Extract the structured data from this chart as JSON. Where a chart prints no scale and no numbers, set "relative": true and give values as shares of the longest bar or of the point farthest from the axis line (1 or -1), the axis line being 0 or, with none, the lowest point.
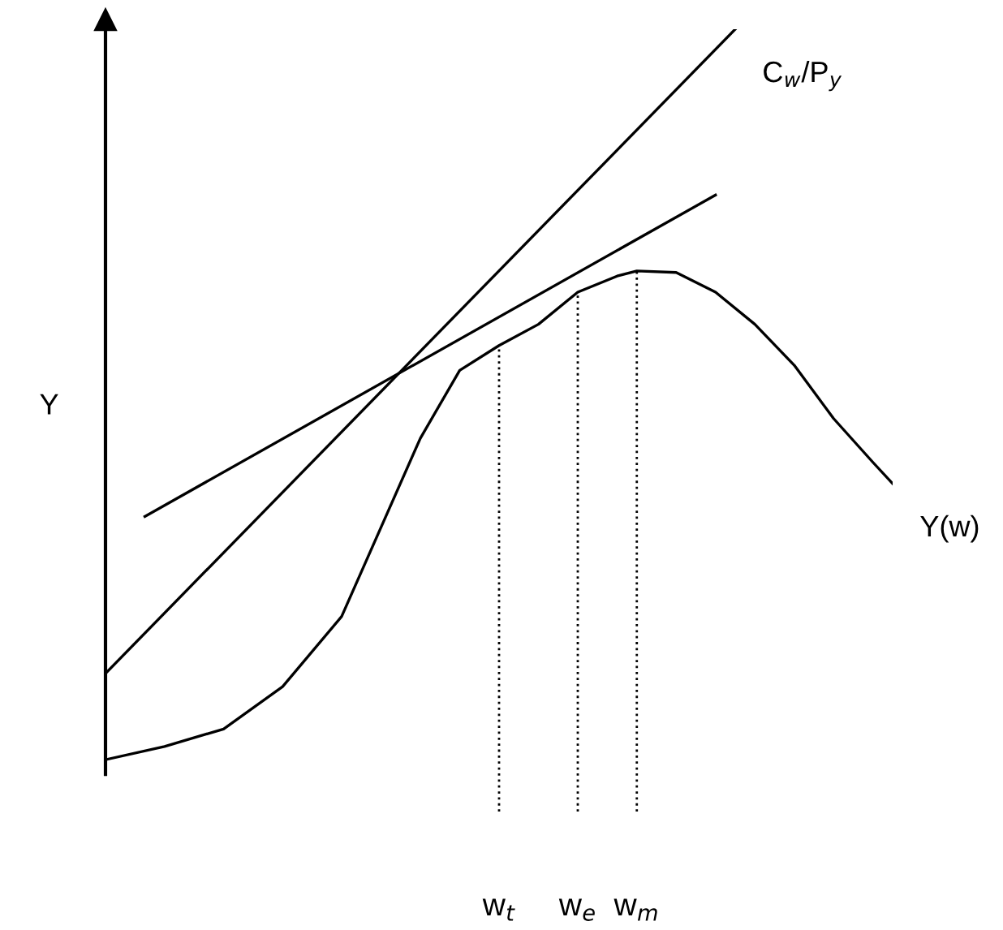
{
  "chart_data": {
    "type": "line",
    "relative": true,
    "ylabel": "Y",
    "tick_labels": "x",
    "marker": "none",
    "categories": [
      null,
      null,
      null,
      null,
      null,
      null,
      null,
      null,
      null,
      null,
      null,
      null,
      null,
      null,
      null,
      null,
      null,
      null,
      null,
      null,
      "w$_{t}$",
      null,
      null,
      null,
      "w$_{e}$",
      null,
      null,
      "w$_{m}$",
      null,
      null,
      null,
      null,
      null,
      null,
      null,
      null,
      null,
      null,
      null,
      null,
      null
    ],
    "series": [
      {
        "name": "C$_{w}$/P$_{y}$",
        "color": "#000000",
        "values": [
          0.118,
          null,
          null,
          null,
          null,
          null,
          null,
          null,
          null,
          null,
          null,
          null,
          null,
          null,
          null,
          null,
          null,
          null,
          null,
          null,
          null,
          null,
          null,
          null,
          null,
          null,
          null,
          null,
          null,
          null,
          null,
          null,
          1.0,
          null,
          null,
          null,
          null,
          null,
          null,
          null,
          null
        ]
      },
      {
        "color": "#000000",
        "values": [
          null,
          null,
          0.333,
          null,
          null,
          null,
          null,
          null,
          null,
          null,
          null,
          null,
          null,
          null,
          null,
          null,
          null,
          null,
          null,
          null,
          null,
          null,
          null,
          null,
          null,
          null,
          null,
          null,
          null,
          null,
          null,
          0.773,
          null,
          null,
          null,
          null,
          null,
          null,
          null,
          null,
          null
        ]
      },
      {
        "name": "Y(w)",
        "color": "#000000",
        "values": [
          0,
          null,
          null,
          0.018,
          null,
          null,
          0.042,
          null,
          null,
          0.1,
          null,
          null,
          0.196,
          null,
          0.318,
          null,
          0.44,
          null,
          0.533,
          null,
          0.567,
          null,
          0.596,
          null,
          0.64,
          null,
          0.662,
          0.669,
          null,
          0.667,
          null,
          0.64,
          null,
          0.596,
          null,
          0.54,
          null,
          0.467,
          null,
          0.407,
          0.378
        ]
      }
    ],
    "ref_lines": [
      {
        "axis": "x",
        "value": "w$_{t}$",
        "line_style": "dotted",
        "color": "#000000"
      },
      {
        "axis": "x",
        "value": "w$_{e}$",
        "line_style": "dotted",
        "color": "#000000"
      },
      {
        "axis": "x",
        "value": "w$_{m}$",
        "line_style": "dotted",
        "color": "#000000"
      }
    ]
  }
}
